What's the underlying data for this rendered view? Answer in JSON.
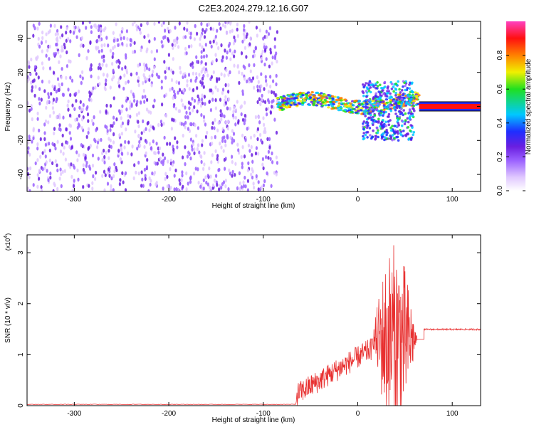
{
  "title": "C2E3.2024.279.12.16.G07",
  "colors": {
    "snr_line": "#e83030",
    "spectro_point": "#6a1fe0",
    "axis": "#000000"
  },
  "chart_data": [
    {
      "type": "heatmap",
      "title": "C2E3.2024.279.12.16.G07",
      "xlabel": "Height of straight line (km)",
      "ylabel": "Frequency (Hz)",
      "xlim": [
        -350,
        130
      ],
      "ylim": [
        -50,
        50
      ],
      "x_ticks": [
        -300,
        -200,
        -100,
        0,
        100
      ],
      "y_ticks": [
        -40,
        -20,
        0,
        20,
        40
      ],
      "grid": false,
      "colorbar": {
        "label": "Normalized spectral amplitude",
        "range": [
          0,
          1
        ],
        "ticks": [
          "0.0",
          "0.2",
          "0.4",
          "0.6",
          "0.8"
        ],
        "colormap": [
          "#ffffff",
          "#e0c8ff",
          "#9a60ff",
          "#6a1fe0",
          "#1e2eff",
          "#00c8ff",
          "#20e020",
          "#f0f000",
          "#ff8000",
          "#ff1010",
          "#ff40c0"
        ]
      },
      "regions": [
        {
          "name": "noise",
          "x_range": [
            -350,
            -85
          ],
          "freq_range": [
            -50,
            50
          ],
          "amplitude": 0.15
        },
        {
          "name": "signal-track",
          "x_range": [
            -85,
            65
          ],
          "center_freq": 2,
          "width_hz": 8,
          "amplitude": 0.7
        },
        {
          "name": "scatter-burst",
          "x_range": [
            5,
            60
          ],
          "freq_range": [
            -20,
            15
          ],
          "amplitude": 0.45
        },
        {
          "name": "steady-tone",
          "x_range": [
            65,
            130
          ],
          "center_freq": 0,
          "width_hz": 3,
          "amplitude": 0.85
        }
      ]
    },
    {
      "type": "line",
      "title": "",
      "xlabel": "Height of straight line (km)",
      "ylabel": "SNR (10 * v/v)",
      "y_scale_label": "(x10",
      "y_scale_exp": "4",
      "y_scale_close": ")",
      "xlim": [
        -350,
        130
      ],
      "ylim": [
        0,
        3.35
      ],
      "x_ticks": [
        -300,
        -200,
        -100,
        0,
        100
      ],
      "y_ticks": [
        0,
        1,
        2,
        3
      ],
      "grid": false,
      "series": [
        {
          "segments": [
            {
              "x_range": [
                -350,
                -65
              ],
              "base": 0.02,
              "amp": 0.01
            },
            {
              "x_range": [
                -65,
                15
              ],
              "base_start": 0.15,
              "base_end": 1.05,
              "amp": 0.45
            },
            {
              "x_range": [
                15,
                70
              ],
              "base": 1.3,
              "amp": 1.9
            },
            {
              "x_range": [
                70,
                130
              ],
              "base": 1.48,
              "amp": 0.03
            }
          ]
        }
      ]
    }
  ]
}
